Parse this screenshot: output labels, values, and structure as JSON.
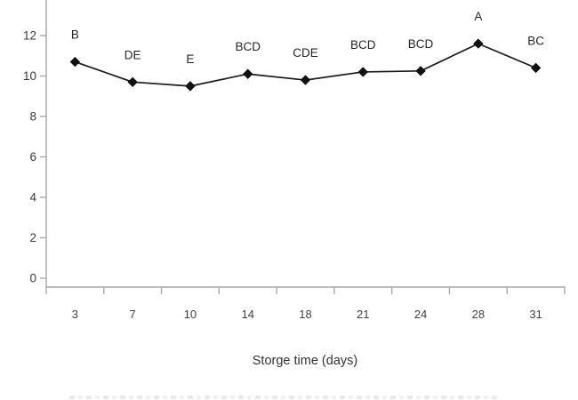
{
  "chart_data": {
    "type": "line",
    "title": "",
    "xlabel": "Storge time (days)",
    "ylabel": "",
    "categories": [
      "3",
      "7",
      "10",
      "14",
      "18",
      "21",
      "24",
      "28",
      "31"
    ],
    "values": [
      10.7,
      9.7,
      9.5,
      10.1,
      9.8,
      10.2,
      10.25,
      11.6,
      10.4
    ],
    "point_labels": [
      "B",
      "DE",
      "E",
      "BCD",
      "CDE",
      "BCD",
      "BCD",
      "A",
      "BC"
    ],
    "y_ticks": [
      0,
      2,
      4,
      6,
      8,
      10,
      12
    ],
    "ylim": [
      0,
      14
    ],
    "grid": false,
    "legend": false,
    "marker": "diamond",
    "line_color": "#1a1a1a",
    "marker_color": "#111111",
    "axis_color": "#a5a5a5",
    "tick_label_color": "#3f3f46",
    "point_label_color": "#262626",
    "background_color": "#ffffff"
  }
}
